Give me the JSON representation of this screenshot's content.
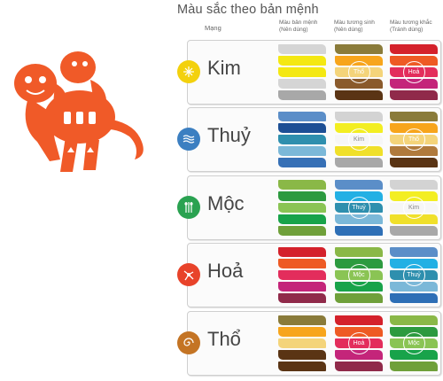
{
  "title": "Màu sắc theo bản mệnh",
  "headers": {
    "mang": "Mạng",
    "ban_menh": [
      "Màu bản mệnh",
      "(Nên dùng)"
    ],
    "tuong_sinh": [
      "Màu tương sinh",
      "(Nên dùng)"
    ],
    "tuong_khac": [
      "Màu tương khắc",
      "(Tránh dùng)"
    ]
  },
  "monkey": {
    "color": "#f05a28",
    "icon": "paper-cut-monkey"
  },
  "rows": [
    {
      "name": "Kim",
      "icon": "kim-icon",
      "circle_color": "#f3d10d",
      "ban_menh": [
        "#d5d5d5",
        "#f4e812",
        "#f4e812",
        "#d5d5d5",
        "#a8a8a8"
      ],
      "tuong_sinh": [
        "#8a7b3a",
        "#f7a51c",
        "#f4d47a",
        "#8a5a2b",
        "#5a3414"
      ],
      "tuong_khac": [
        "#d4212b",
        "#ee5a24",
        "#e32d5c",
        "#c4257a",
        "#902a4a"
      ],
      "tuong_sinh_label": "Thổ",
      "tuong_khac_label": "Hoả"
    },
    {
      "name": "Thuỷ",
      "icon": "water-icon",
      "circle_color": "#3c7fc1",
      "ban_menh": [
        "#5b8ec8",
        "#1d4f95",
        "#2e8fae",
        "#7bb8d8",
        "#3670b6"
      ],
      "tuong_sinh": [
        "#d3d3d3",
        "#f3ee22",
        "#f6f6f6",
        "#f0e02a",
        "#a8a8a8"
      ],
      "tuong_khac": [
        "#8a7b3a",
        "#f7a51c",
        "#f4d47a",
        "#b07a3c",
        "#5a3414"
      ],
      "tuong_sinh_label": "Kim",
      "tuong_khac_label": "Thổ"
    },
    {
      "name": "Mộc",
      "icon": "wood-icon",
      "circle_color": "#2aa251",
      "ban_menh": [
        "#8ab847",
        "#2c9a3f",
        "#8ac454",
        "#18a34a",
        "#6fa03a"
      ],
      "tuong_sinh": [
        "#5b8ec8",
        "#23b0e4",
        "#2e8fae",
        "#7bb8d8",
        "#2e6fb6"
      ],
      "tuong_khac": [
        "#d3d3d3",
        "#f3ee22",
        "#f6f6f6",
        "#f0e02a",
        "#a8a8a8"
      ],
      "tuong_sinh_label": "Thuỷ",
      "tuong_khac_label": "Kim"
    },
    {
      "name": "Hoả",
      "icon": "fire-icon",
      "circle_color": "#e8432a",
      "ban_menh": [
        "#d4212b",
        "#ee5a24",
        "#e32d5c",
        "#c4257a",
        "#902a4a"
      ],
      "tuong_sinh": [
        "#8ab847",
        "#2c9a3f",
        "#8ac454",
        "#18a34a",
        "#6fa03a"
      ],
      "tuong_khac": [
        "#5b8ec8",
        "#23b0e4",
        "#2e8fae",
        "#7bb8d8",
        "#2e6fb6"
      ],
      "tuong_sinh_label": "Mộc",
      "tuong_khac_label": "Thuỷ"
    },
    {
      "name": "Thổ",
      "icon": "earth-icon",
      "circle_color": "#c47424",
      "ban_menh": [
        "#8a7b3a",
        "#f7a51c",
        "#f4d47a",
        "#5a3414",
        "#5a3414"
      ],
      "tuong_sinh": [
        "#d4212b",
        "#ee5a24",
        "#e32d5c",
        "#c4257a",
        "#902a4a"
      ],
      "tuong_khac": [
        "#8ab847",
        "#2c9a3f",
        "#8ac454",
        "#18a34a",
        "#6fa03a"
      ],
      "tuong_sinh_label": "Hoả",
      "tuong_khac_label": "Mộc"
    }
  ]
}
